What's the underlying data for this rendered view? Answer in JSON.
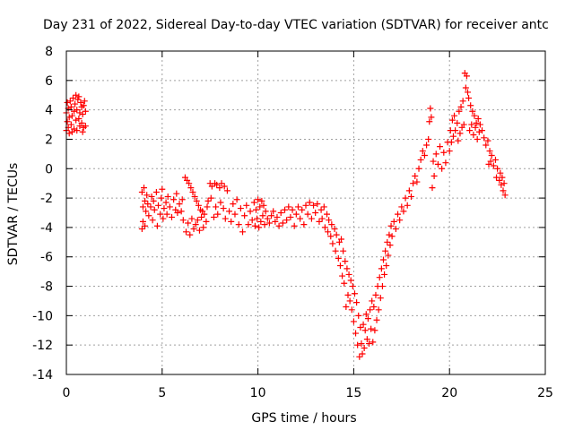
{
  "chart_data": {
    "type": "scatter",
    "title": "Day 231 of 2022, Sidereal Day-to-day VTEC variation (SDTVAR) for receiver antc",
    "xlabel": "GPS time / hours",
    "ylabel": "SDTVAR / TECUs",
    "xlim": [
      0,
      25
    ],
    "ylim": [
      -14,
      8
    ],
    "xticks": [
      0,
      5,
      10,
      15,
      20,
      25
    ],
    "yticks": [
      -14,
      -12,
      -10,
      -8,
      -6,
      -4,
      -2,
      0,
      2,
      4,
      6,
      8
    ],
    "grid": true,
    "marker": "+",
    "colors": {
      "series": "#ff0000",
      "grid": "#a0a0a0",
      "axis": "#000000"
    },
    "series": [
      {
        "name": "SDTVAR",
        "color": "#ff0000",
        "points": [
          [
            0.0,
            2.6
          ],
          [
            0.0,
            3.8
          ],
          [
            0.05,
            4.5
          ],
          [
            0.05,
            3.2
          ],
          [
            0.1,
            2.8
          ],
          [
            0.1,
            4.1
          ],
          [
            0.15,
            3.5
          ],
          [
            0.15,
            2.4
          ],
          [
            0.2,
            4.6
          ],
          [
            0.25,
            3.0
          ],
          [
            0.25,
            4.2
          ],
          [
            0.3,
            3.6
          ],
          [
            0.3,
            2.5
          ],
          [
            0.35,
            4.8
          ],
          [
            0.4,
            3.9
          ],
          [
            0.4,
            2.7
          ],
          [
            0.45,
            4.4
          ],
          [
            0.5,
            3.3
          ],
          [
            0.5,
            5.0
          ],
          [
            0.55,
            4.0
          ],
          [
            0.55,
            2.6
          ],
          [
            0.6,
            4.7
          ],
          [
            0.65,
            3.4
          ],
          [
            0.65,
            4.9
          ],
          [
            0.7,
            3.8
          ],
          [
            0.7,
            2.9
          ],
          [
            0.75,
            4.5
          ],
          [
            0.8,
            3.1
          ],
          [
            0.8,
            4.2
          ],
          [
            0.85,
            2.5
          ],
          [
            0.85,
            3.7
          ],
          [
            0.9,
            4.3
          ],
          [
            0.9,
            2.8
          ],
          [
            0.95,
            4.6
          ],
          [
            1.0,
            3.9
          ],
          [
            1.0,
            2.9
          ],
          [
            3.95,
            -1.6
          ],
          [
            3.95,
            -4.1
          ],
          [
            4.0,
            -2.6
          ],
          [
            4.0,
            -3.6
          ],
          [
            4.05,
            -1.3
          ],
          [
            4.1,
            -2.2
          ],
          [
            4.1,
            -3.9
          ],
          [
            4.15,
            -2.9
          ],
          [
            4.2,
            -1.8
          ],
          [
            4.25,
            -2.4
          ],
          [
            4.3,
            -3.2
          ],
          [
            4.4,
            -2.6
          ],
          [
            4.45,
            -1.9
          ],
          [
            4.5,
            -3.5
          ],
          [
            4.55,
            -2.2
          ],
          [
            4.6,
            -2.8
          ],
          [
            4.7,
            -1.6
          ],
          [
            4.75,
            -3.9
          ],
          [
            4.8,
            -2.5
          ],
          [
            4.9,
            -3.1
          ],
          [
            4.95,
            -2.0
          ],
          [
            5.0,
            -1.4
          ],
          [
            5.05,
            -3.4
          ],
          [
            5.1,
            -2.7
          ],
          [
            5.2,
            -2.3
          ],
          [
            5.25,
            -3.1
          ],
          [
            5.3,
            -1.9
          ],
          [
            5.4,
            -2.6
          ],
          [
            5.5,
            -3.3
          ],
          [
            5.6,
            -2.1
          ],
          [
            5.7,
            -2.8
          ],
          [
            5.75,
            -1.7
          ],
          [
            5.8,
            -3.0
          ],
          [
            5.9,
            -2.4
          ],
          [
            6.0,
            -2.9
          ],
          [
            6.05,
            -2.1
          ],
          [
            6.1,
            -3.5
          ],
          [
            6.2,
            -0.6
          ],
          [
            6.25,
            -4.3
          ],
          [
            6.3,
            -0.8
          ],
          [
            6.35,
            -3.7
          ],
          [
            6.4,
            -1.0
          ],
          [
            6.45,
            -4.5
          ],
          [
            6.5,
            -1.3
          ],
          [
            6.55,
            -3.4
          ],
          [
            6.6,
            -1.6
          ],
          [
            6.65,
            -4.1
          ],
          [
            6.7,
            -1.9
          ],
          [
            6.75,
            -3.8
          ],
          [
            6.8,
            -2.2
          ],
          [
            6.85,
            -3.5
          ],
          [
            6.9,
            -2.5
          ],
          [
            6.95,
            -4.2
          ],
          [
            7.0,
            -2.8
          ],
          [
            7.05,
            -3.3
          ],
          [
            7.1,
            -2.9
          ],
          [
            7.15,
            -4.0
          ],
          [
            7.2,
            -3.1
          ],
          [
            7.3,
            -3.6
          ],
          [
            7.35,
            -2.6
          ],
          [
            7.4,
            -2.2
          ],
          [
            7.5,
            -1.0
          ],
          [
            7.55,
            -2.0
          ],
          [
            7.6,
            -1.2
          ],
          [
            7.7,
            -3.3
          ],
          [
            7.75,
            -1.0
          ],
          [
            7.8,
            -2.6
          ],
          [
            7.85,
            -1.1
          ],
          [
            7.9,
            -3.1
          ],
          [
            8.0,
            -1.3
          ],
          [
            8.05,
            -2.3
          ],
          [
            8.1,
            -1.0
          ],
          [
            8.2,
            -2.7
          ],
          [
            8.25,
            -1.2
          ],
          [
            8.3,
            -3.4
          ],
          [
            8.4,
            -1.5
          ],
          [
            8.5,
            -2.9
          ],
          [
            8.6,
            -3.6
          ],
          [
            8.7,
            -2.4
          ],
          [
            8.8,
            -3.1
          ],
          [
            8.9,
            -2.1
          ],
          [
            9.0,
            -3.8
          ],
          [
            9.1,
            -2.7
          ],
          [
            9.2,
            -4.3
          ],
          [
            9.3,
            -3.2
          ],
          [
            9.4,
            -2.5
          ],
          [
            9.5,
            -3.8
          ],
          [
            9.6,
            -2.9
          ],
          [
            9.7,
            -3.5
          ],
          [
            9.8,
            -2.3
          ],
          [
            9.85,
            -3.9
          ],
          [
            9.9,
            -2.8
          ],
          [
            9.95,
            -3.4
          ],
          [
            10.0,
            -2.1
          ],
          [
            10.05,
            -4.0
          ],
          [
            10.1,
            -2.6
          ],
          [
            10.15,
            -3.6
          ],
          [
            10.2,
            -2.2
          ],
          [
            10.25,
            -3.2
          ],
          [
            10.3,
            -2.5
          ],
          [
            10.35,
            -3.8
          ],
          [
            10.4,
            -2.9
          ],
          [
            10.5,
            -3.4
          ],
          [
            10.6,
            -3.7
          ],
          [
            10.7,
            -3.2
          ],
          [
            10.8,
            -2.9
          ],
          [
            10.9,
            -3.6
          ],
          [
            11.0,
            -3.3
          ],
          [
            11.1,
            -3.9
          ],
          [
            11.2,
            -3.0
          ],
          [
            11.3,
            -3.7
          ],
          [
            11.4,
            -2.8
          ],
          [
            11.5,
            -3.5
          ],
          [
            11.6,
            -2.6
          ],
          [
            11.7,
            -3.3
          ],
          [
            11.8,
            -2.8
          ],
          [
            11.9,
            -3.9
          ],
          [
            12.0,
            -3.1
          ],
          [
            12.1,
            -2.6
          ],
          [
            12.2,
            -3.4
          ],
          [
            12.3,
            -2.8
          ],
          [
            12.4,
            -3.8
          ],
          [
            12.5,
            -2.5
          ],
          [
            12.6,
            -3.1
          ],
          [
            12.7,
            -2.3
          ],
          [
            12.8,
            -3.4
          ],
          [
            12.9,
            -2.5
          ],
          [
            13.0,
            -3.0
          ],
          [
            13.1,
            -2.4
          ],
          [
            13.2,
            -3.6
          ],
          [
            13.3,
            -2.8
          ],
          [
            13.35,
            -3.4
          ],
          [
            13.45,
            -2.6
          ],
          [
            13.5,
            -4.0
          ],
          [
            13.6,
            -3.1
          ],
          [
            13.65,
            -4.3
          ],
          [
            13.7,
            -3.5
          ],
          [
            13.8,
            -4.6
          ],
          [
            13.85,
            -3.8
          ],
          [
            13.9,
            -5.1
          ],
          [
            14.0,
            -4.1
          ],
          [
            14.05,
            -5.6
          ],
          [
            14.1,
            -4.5
          ],
          [
            14.2,
            -6.1
          ],
          [
            14.25,
            -5.0
          ],
          [
            14.3,
            -6.6
          ],
          [
            14.35,
            -4.8
          ],
          [
            14.4,
            -7.3
          ],
          [
            14.45,
            -5.6
          ],
          [
            14.5,
            -7.8
          ],
          [
            14.55,
            -6.3
          ],
          [
            14.6,
            -9.4
          ],
          [
            14.65,
            -6.8
          ],
          [
            14.7,
            -8.6
          ],
          [
            14.75,
            -7.2
          ],
          [
            14.8,
            -9.0
          ],
          [
            14.85,
            -7.6
          ],
          [
            14.9,
            -9.6
          ],
          [
            14.95,
            -8.0
          ],
          [
            15.0,
            -10.4
          ],
          [
            15.05,
            -8.5
          ],
          [
            15.1,
            -11.2
          ],
          [
            15.15,
            -9.1
          ],
          [
            15.2,
            -12.0
          ],
          [
            15.25,
            -10.0
          ],
          [
            15.3,
            -12.8
          ],
          [
            15.35,
            -10.8
          ],
          [
            15.4,
            -11.9
          ],
          [
            15.45,
            -12.6
          ],
          [
            15.5,
            -10.6
          ],
          [
            15.55,
            -12.2
          ],
          [
            15.6,
            -11.0
          ],
          [
            15.65,
            -9.9
          ],
          [
            15.7,
            -11.6
          ],
          [
            15.75,
            -10.2
          ],
          [
            15.8,
            -11.9
          ],
          [
            15.85,
            -9.6
          ],
          [
            15.9,
            -10.9
          ],
          [
            15.95,
            -9.0
          ],
          [
            16.0,
            -11.8
          ],
          [
            16.05,
            -9.4
          ],
          [
            16.1,
            -11.0
          ],
          [
            16.15,
            -8.6
          ],
          [
            16.2,
            -10.3
          ],
          [
            16.25,
            -8.0
          ],
          [
            16.3,
            -9.6
          ],
          [
            16.35,
            -7.4
          ],
          [
            16.4,
            -8.8
          ],
          [
            16.45,
            -6.8
          ],
          [
            16.5,
            -8.0
          ],
          [
            16.55,
            -6.2
          ],
          [
            16.6,
            -7.2
          ],
          [
            16.65,
            -5.6
          ],
          [
            16.7,
            -6.6
          ],
          [
            16.75,
            -5.0
          ],
          [
            16.8,
            -5.9
          ],
          [
            16.85,
            -4.5
          ],
          [
            16.9,
            -5.2
          ],
          [
            16.95,
            -3.9
          ],
          [
            17.0,
            -4.6
          ],
          [
            17.1,
            -3.6
          ],
          [
            17.2,
            -4.1
          ],
          [
            17.3,
            -3.1
          ],
          [
            17.4,
            -3.5
          ],
          [
            17.5,
            -2.6
          ],
          [
            17.6,
            -2.9
          ],
          [
            17.7,
            -2.0
          ],
          [
            17.8,
            -2.5
          ],
          [
            17.9,
            -1.5
          ],
          [
            18.0,
            -1.9
          ],
          [
            18.1,
            -1.0
          ],
          [
            18.2,
            -0.5
          ],
          [
            18.3,
            -0.9
          ],
          [
            18.4,
            0.0
          ],
          [
            18.5,
            0.6
          ],
          [
            18.6,
            1.2
          ],
          [
            18.7,
            0.9
          ],
          [
            18.8,
            1.6
          ],
          [
            18.9,
            2.0
          ],
          [
            18.95,
            3.2
          ],
          [
            19.0,
            4.1
          ],
          [
            19.05,
            3.5
          ],
          [
            19.1,
            -1.3
          ],
          [
            19.15,
            0.5
          ],
          [
            19.2,
            -0.5
          ],
          [
            19.3,
            1.0
          ],
          [
            19.4,
            0.3
          ],
          [
            19.5,
            1.5
          ],
          [
            19.6,
            0.0
          ],
          [
            19.7,
            1.1
          ],
          [
            19.8,
            0.4
          ],
          [
            19.9,
            1.8
          ],
          [
            20.0,
            1.2
          ],
          [
            20.05,
            2.6
          ],
          [
            20.1,
            1.8
          ],
          [
            20.15,
            3.3
          ],
          [
            20.2,
            2.2
          ],
          [
            20.25,
            3.6
          ],
          [
            20.3,
            2.6
          ],
          [
            20.4,
            3.1
          ],
          [
            20.45,
            1.9
          ],
          [
            20.5,
            3.9
          ],
          [
            20.55,
            2.4
          ],
          [
            20.6,
            4.2
          ],
          [
            20.65,
            2.8
          ],
          [
            20.7,
            4.6
          ],
          [
            20.75,
            3.0
          ],
          [
            20.8,
            6.5
          ],
          [
            20.85,
            5.5
          ],
          [
            20.9,
            6.3
          ],
          [
            20.95,
            5.2
          ],
          [
            21.0,
            4.8
          ],
          [
            21.05,
            2.6
          ],
          [
            21.1,
            4.3
          ],
          [
            21.15,
            3.0
          ],
          [
            21.2,
            3.9
          ],
          [
            21.25,
            2.3
          ],
          [
            21.3,
            3.6
          ],
          [
            21.35,
            2.8
          ],
          [
            21.4,
            3.1
          ],
          [
            21.45,
            2.0
          ],
          [
            21.5,
            3.4
          ],
          [
            21.55,
            2.5
          ],
          [
            21.6,
            3.0
          ],
          [
            21.7,
            2.6
          ],
          [
            21.8,
            2.1
          ],
          [
            21.9,
            1.6
          ],
          [
            22.0,
            1.9
          ],
          [
            22.05,
            0.3
          ],
          [
            22.1,
            1.2
          ],
          [
            22.15,
            0.5
          ],
          [
            22.2,
            0.9
          ],
          [
            22.3,
            0.2
          ],
          [
            22.4,
            0.6
          ],
          [
            22.45,
            -0.6
          ],
          [
            22.5,
            0.0
          ],
          [
            22.6,
            -0.8
          ],
          [
            22.65,
            -0.3
          ],
          [
            22.7,
            -1.1
          ],
          [
            22.75,
            -0.6
          ],
          [
            22.8,
            -1.5
          ],
          [
            22.85,
            -1.0
          ],
          [
            22.9,
            -1.8
          ]
        ]
      }
    ]
  }
}
